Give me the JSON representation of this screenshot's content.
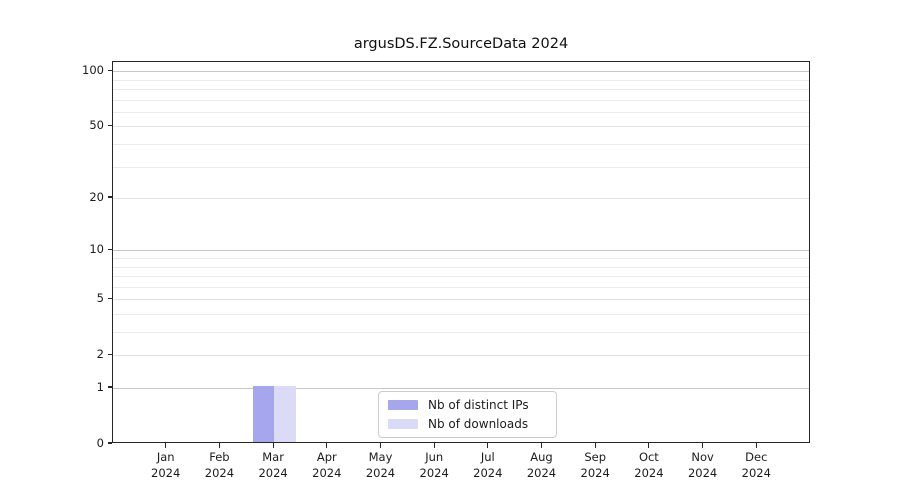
{
  "title": "argusDS.FZ.SourceData 2024",
  "chart_data": {
    "type": "bar",
    "title": "argusDS.FZ.SourceData 2024",
    "x_categories": [
      "Jan",
      "Feb",
      "Mar",
      "Apr",
      "May",
      "Jun",
      "Jul",
      "Aug",
      "Sep",
      "Oct",
      "Nov",
      "Dec"
    ],
    "x_year": "2024",
    "series": [
      {
        "name": "Nb of distinct IPs",
        "color": "#a6a6ef",
        "values": [
          0,
          0,
          1,
          0,
          0,
          0,
          0,
          0,
          0,
          0,
          0,
          0
        ]
      },
      {
        "name": "Nb of downloads",
        "color": "#dbdbf8",
        "values": [
          0,
          0,
          1,
          0,
          0,
          0,
          0,
          0,
          0,
          0,
          0,
          0
        ]
      }
    ],
    "yscale": "log1p",
    "ylim": [
      0,
      112
    ],
    "yticks_labeled": [
      0,
      1,
      2,
      5,
      10,
      20,
      50,
      100
    ],
    "yticks_minor": [
      3,
      4,
      6,
      7,
      8,
      9,
      30,
      40,
      60,
      70,
      80,
      90
    ],
    "grid": "on",
    "legend": {
      "position": "lower center",
      "entries": [
        "Nb of distinct IPs",
        "Nb of downloads"
      ]
    }
  },
  "colors": {
    "bar_distinct_ips": "#a6a6ef",
    "bar_downloads": "#dbdbf8",
    "grid_decade": "#c7c7c7",
    "grid_major": "#e4e4e4",
    "grid_minor": "#ebebeb",
    "axis_spine": "#262626",
    "text": "#1c1c1c",
    "legend_border": "#cccccc",
    "background": "#ffffff"
  }
}
